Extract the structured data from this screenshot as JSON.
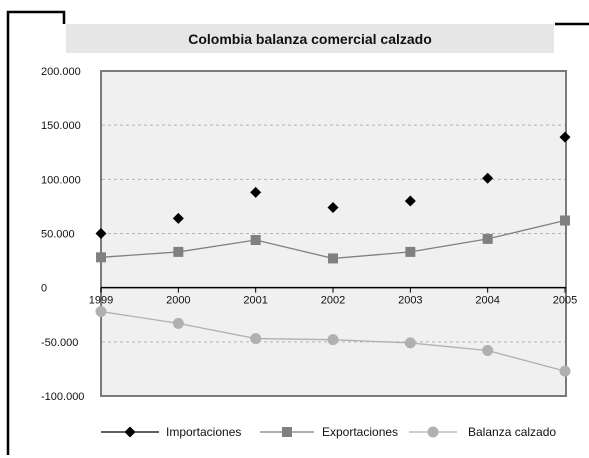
{
  "chart_data": {
    "type": "line",
    "title": "Colombia balanza comercial calzado",
    "categories": [
      "1999",
      "2000",
      "2001",
      "2002",
      "2003",
      "2004",
      "2005"
    ],
    "series": [
      {
        "name": "Importaciones",
        "values": [
          50000,
          64000,
          88000,
          74000,
          80000,
          101000,
          139000
        ],
        "marker": "diamond",
        "line": false,
        "color": "#000000"
      },
      {
        "name": "Exportaciones",
        "values": [
          28000,
          33000,
          44000,
          27000,
          33000,
          45000,
          62000
        ],
        "marker": "square",
        "line": true,
        "color": "#808080"
      },
      {
        "name": "Balanza calzado",
        "values": [
          -22000,
          -33000,
          -47000,
          -48000,
          -51000,
          -58000,
          -77000
        ],
        "marker": "circle",
        "line": true,
        "color": "#b0b0b0"
      }
    ],
    "y_ticks": [
      {
        "value": 200000,
        "label": "200.000"
      },
      {
        "value": 150000,
        "label": "150.000"
      },
      {
        "value": 100000,
        "label": "100.000"
      },
      {
        "value": 50000,
        "label": "50.000"
      },
      {
        "value": 0,
        "label": "0"
      },
      {
        "value": -50000,
        "label": "-50.000"
      },
      {
        "value": -100000,
        "label": "-100.000"
      }
    ],
    "ylim": [
      -100000,
      200000
    ],
    "grid": "horizontal-dashed",
    "legend": "bottom",
    "plot_background": "#f0f0f0",
    "title_background": "#e6e6e6"
  }
}
